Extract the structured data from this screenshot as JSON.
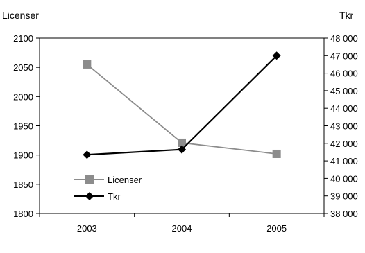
{
  "chart_data": {
    "type": "line",
    "categories": [
      "2003",
      "2004",
      "2005"
    ],
    "ylabel_left": "Licenser",
    "ylabel_right": "Tkr",
    "ylim_left": [
      1800,
      2100
    ],
    "ylim_right": [
      38000,
      48000
    ],
    "yticks_left": [
      "1800",
      "1850",
      "1900",
      "1950",
      "2000",
      "2050",
      "2100"
    ],
    "yticks_right": [
      "38 000",
      "39 000",
      "40 000",
      "41 000",
      "42 000",
      "43 000",
      "44 000",
      "45 000",
      "46 000",
      "47 000",
      "48 000"
    ],
    "grid": false,
    "legend": "bottom-left",
    "series": [
      {
        "name": "Licenser",
        "axis": "left",
        "values": [
          2055,
          1921,
          1902
        ],
        "color": "#8c8c8c",
        "marker": "square"
      },
      {
        "name": "Tkr",
        "axis": "right",
        "values": [
          41350,
          41650,
          47000
        ],
        "color": "#000000",
        "marker": "diamond"
      }
    ]
  }
}
